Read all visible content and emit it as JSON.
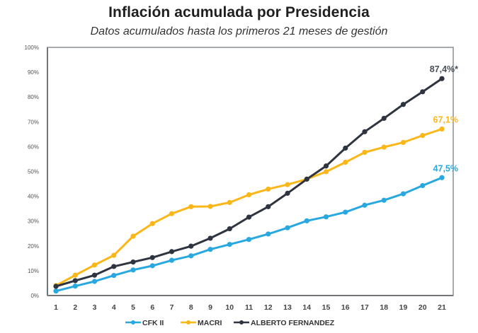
{
  "chart_data": {
    "type": "line",
    "title": "Inflación acumulada por Presidencia",
    "subtitle": "Datos acumulados hasta los primeros 21 meses de gestión",
    "xlabel": "",
    "ylabel": "",
    "x": [
      1,
      2,
      3,
      4,
      5,
      6,
      7,
      8,
      9,
      10,
      11,
      12,
      13,
      14,
      15,
      16,
      17,
      18,
      19,
      20,
      21
    ],
    "ylim": [
      0,
      100
    ],
    "yticks": [
      0,
      10,
      20,
      30,
      40,
      50,
      60,
      70,
      80,
      90,
      100
    ],
    "ytick_labels": [
      "0%",
      "10%",
      "20%",
      "30%",
      "40%",
      "50%",
      "60%",
      "70%",
      "80%",
      "90%",
      "100%"
    ],
    "grid": false,
    "legend_position": "bottom",
    "series": [
      {
        "name": "CFK II",
        "color": "#29a8e0",
        "values": [
          1.8,
          3.8,
          5.7,
          8.1,
          10.3,
          12.0,
          14.2,
          16.0,
          18.6,
          20.6,
          22.6,
          24.8,
          27.3,
          30.1,
          31.7,
          33.6,
          36.4,
          38.4,
          41.0,
          44.3,
          47.5
        ],
        "end_label": "47,5%"
      },
      {
        "name": "MACRI",
        "color": "#fbb719",
        "values": [
          4.0,
          8.2,
          12.3,
          16.2,
          23.9,
          29.0,
          33.0,
          35.8,
          35.9,
          37.5,
          40.6,
          42.9,
          44.7,
          46.9,
          49.9,
          53.7,
          57.7,
          59.8,
          61.7,
          64.5,
          67.1
        ],
        "end_label": "67,1%"
      },
      {
        "name": "ALBERTO FERNANDEZ",
        "color": "#2e3440",
        "values": [
          3.7,
          6.0,
          8.2,
          11.7,
          13.5,
          15.3,
          17.7,
          19.9,
          23.1,
          26.9,
          31.6,
          35.8,
          41.2,
          46.9,
          52.2,
          59.4,
          66.0,
          71.4,
          77.0,
          82.1,
          87.4
        ],
        "end_label": "87,4%*"
      }
    ]
  }
}
